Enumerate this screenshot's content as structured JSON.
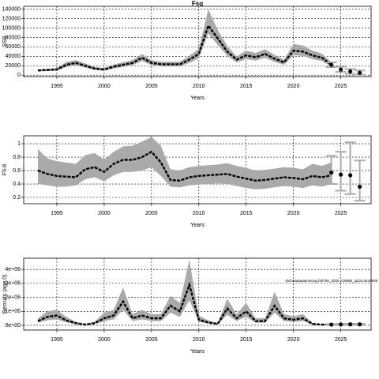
{
  "chart_data": [
    {
      "type": "line",
      "title": "Fsq",
      "ylabel": "SSB",
      "xlabel": "Years",
      "grid": true,
      "color": "#000000",
      "band_color": "#aaaaaa",
      "x": [
        1993,
        1994,
        1995,
        1996,
        1997,
        1998,
        1999,
        2000,
        2001,
        2002,
        2003,
        2004,
        2005,
        2006,
        2007,
        2008,
        2009,
        2010,
        2011,
        2012,
        2013,
        2014,
        2015,
        2016,
        2017,
        2018,
        2019,
        2020,
        2021,
        2022,
        2023,
        2024
      ],
      "values": [
        10000,
        11000,
        12000,
        22000,
        26000,
        20000,
        14000,
        12000,
        18000,
        22000,
        26000,
        37000,
        26000,
        23000,
        23000,
        23000,
        33000,
        45000,
        105000,
        78000,
        50000,
        33000,
        42000,
        38000,
        45000,
        35000,
        27000,
        52000,
        50000,
        42000,
        37000,
        22000
      ],
      "lower": [
        8000,
        9000,
        9500,
        17000,
        21000,
        16000,
        11000,
        9500,
        14000,
        17500,
        21000,
        30000,
        21000,
        18500,
        18500,
        18500,
        26000,
        36000,
        88000,
        64000,
        41000,
        27000,
        34000,
        31000,
        37000,
        28000,
        22000,
        42000,
        41000,
        34000,
        30000,
        18000
      ],
      "upper": [
        12500,
        13500,
        15000,
        28000,
        32000,
        25000,
        17500,
        15000,
        22500,
        27500,
        32000,
        45000,
        32000,
        28500,
        28500,
        28500,
        41000,
        56000,
        140000,
        96000,
        62000,
        40000,
        52000,
        47000,
        55000,
        43000,
        33000,
        66000,
        63000,
        52000,
        46000,
        27000
      ],
      "proj_x": [
        2024,
        2025,
        2026,
        2027
      ],
      "proj_values": [
        22000,
        12000,
        8000,
        5000
      ],
      "proj_lower": [
        17000,
        7000,
        3000,
        1000
      ],
      "proj_upper": [
        27000,
        18000,
        13000,
        10000
      ],
      "xlim": [
        1991.5,
        2028.2
      ],
      "xticks": [
        1995,
        2000,
        2005,
        2010,
        2015,
        2020,
        2025
      ],
      "ylim": [
        -3000,
        146000
      ],
      "yticks": [
        0,
        20000,
        40000,
        60000,
        80000,
        100000,
        120000,
        140000
      ]
    },
    {
      "type": "line",
      "ylabel": "F5-8",
      "xlabel": "Years",
      "grid": true,
      "color": "#000000",
      "band_color": "#aaaaaa",
      "x": [
        1993,
        1994,
        1995,
        1996,
        1997,
        1998,
        1999,
        2000,
        2001,
        2002,
        2003,
        2004,
        2005,
        2006,
        2007,
        2008,
        2009,
        2010,
        2011,
        2012,
        2013,
        2014,
        2015,
        2016,
        2017,
        2018,
        2019,
        2020,
        2021,
        2022,
        2023,
        2024
      ],
      "values": [
        0.6,
        0.55,
        0.52,
        0.51,
        0.5,
        0.62,
        0.65,
        0.58,
        0.7,
        0.76,
        0.76,
        0.8,
        0.88,
        0.72,
        0.46,
        0.45,
        0.5,
        0.52,
        0.53,
        0.54,
        0.55,
        0.51,
        0.48,
        0.45,
        0.46,
        0.48,
        0.5,
        0.49,
        0.47,
        0.52,
        0.5,
        0.53
      ],
      "lower": [
        0.4,
        0.38,
        0.36,
        0.36,
        0.38,
        0.47,
        0.5,
        0.44,
        0.53,
        0.58,
        0.58,
        0.6,
        0.65,
        0.52,
        0.36,
        0.35,
        0.38,
        0.39,
        0.4,
        0.41,
        0.4,
        0.37,
        0.34,
        0.32,
        0.33,
        0.35,
        0.37,
        0.36,
        0.34,
        0.38,
        0.36,
        0.4
      ],
      "upper": [
        0.92,
        0.78,
        0.74,
        0.72,
        0.7,
        0.83,
        0.86,
        0.76,
        0.88,
        0.96,
        0.97,
        1.03,
        1.1,
        0.97,
        0.62,
        0.6,
        0.65,
        0.67,
        0.68,
        0.69,
        0.71,
        0.67,
        0.64,
        0.6,
        0.61,
        0.63,
        0.65,
        0.64,
        0.62,
        0.7,
        0.67,
        0.72
      ],
      "proj_x": [
        2024,
        2025,
        2026,
        2027
      ],
      "proj_values": [
        0.57,
        0.54,
        0.53,
        0.36
      ],
      "proj_lower": [
        0.4,
        0.3,
        0.25,
        0.15
      ],
      "proj_upper": [
        0.82,
        0.88,
        1.02,
        0.75
      ],
      "xlim": [
        1991.5,
        2028.2
      ],
      "xticks": [
        1995,
        2000,
        2005,
        2010,
        2015,
        2020,
        2025
      ],
      "ylim": [
        0.106,
        1.118
      ],
      "yticks": [
        0.2,
        0.4,
        0.6,
        0.8,
        1.0
      ]
    },
    {
      "type": "line",
      "ylabel": "Recruits (age 0)",
      "xlabel": "Years",
      "grid": true,
      "color": "#000000",
      "band_color": "#aaaaaa",
      "annotation": "sbchaaaaaaamsoog.f4079a_2025_r18686_qd1cc444a908",
      "x": [
        1993,
        1994,
        1995,
        1996,
        1997,
        1998,
        1999,
        2000,
        2001,
        2002,
        2003,
        2004,
        2005,
        2006,
        2007,
        2008,
        2009,
        2010,
        2011,
        2012,
        2013,
        2014,
        2015,
        2016,
        2017,
        2018,
        2019,
        2020,
        2021,
        2022,
        2023,
        2024
      ],
      "values": [
        300000,
        600000,
        700000,
        350000,
        150000,
        50000,
        150000,
        500000,
        700000,
        1700000,
        500000,
        700000,
        500000,
        500000,
        1400000,
        1000000,
        2900000,
        400000,
        200000,
        100000,
        1200000,
        500000,
        1000000,
        300000,
        300000,
        1400000,
        500000,
        400000,
        500000,
        100000,
        50000,
        50000
      ],
      "lower": [
        180000,
        360000,
        420000,
        210000,
        90000,
        30000,
        90000,
        300000,
        420000,
        1100000,
        300000,
        420000,
        300000,
        300000,
        900000,
        600000,
        1800000,
        240000,
        120000,
        60000,
        750000,
        300000,
        600000,
        180000,
        180000,
        900000,
        300000,
        240000,
        300000,
        60000,
        30000,
        30000
      ],
      "upper": [
        500000,
        1000000,
        1100000,
        600000,
        250000,
        90000,
        250000,
        900000,
        1100000,
        2700000,
        800000,
        1100000,
        800000,
        800000,
        2100000,
        1600000,
        4700000,
        700000,
        350000,
        170000,
        1900000,
        800000,
        1600000,
        500000,
        500000,
        2400000,
        800000,
        650000,
        800000,
        170000,
        80000,
        80000
      ],
      "proj_x": [
        2024,
        2025,
        2026,
        2027
      ],
      "proj_values": [
        50000,
        60000,
        70000,
        70000
      ],
      "proj_lower": [
        30000,
        30000,
        30000,
        30000
      ],
      "proj_upper": [
        80000,
        100000,
        110000,
        110000
      ],
      "xlim": [
        1991.5,
        2028.2
      ],
      "xticks": [
        1995,
        2000,
        2005,
        2010,
        2015,
        2020,
        2025
      ],
      "ylim": [
        -340000,
        4800000
      ],
      "yticks": [
        {
          "value": 0,
          "label": "0e+00"
        },
        {
          "value": 1000000,
          "label": "1e+06"
        },
        {
          "value": 2000000,
          "label": "2e+06"
        },
        {
          "value": 3000000,
          "label": "3e+06"
        },
        {
          "value": 4000000,
          "label": "4e+06"
        }
      ]
    }
  ]
}
